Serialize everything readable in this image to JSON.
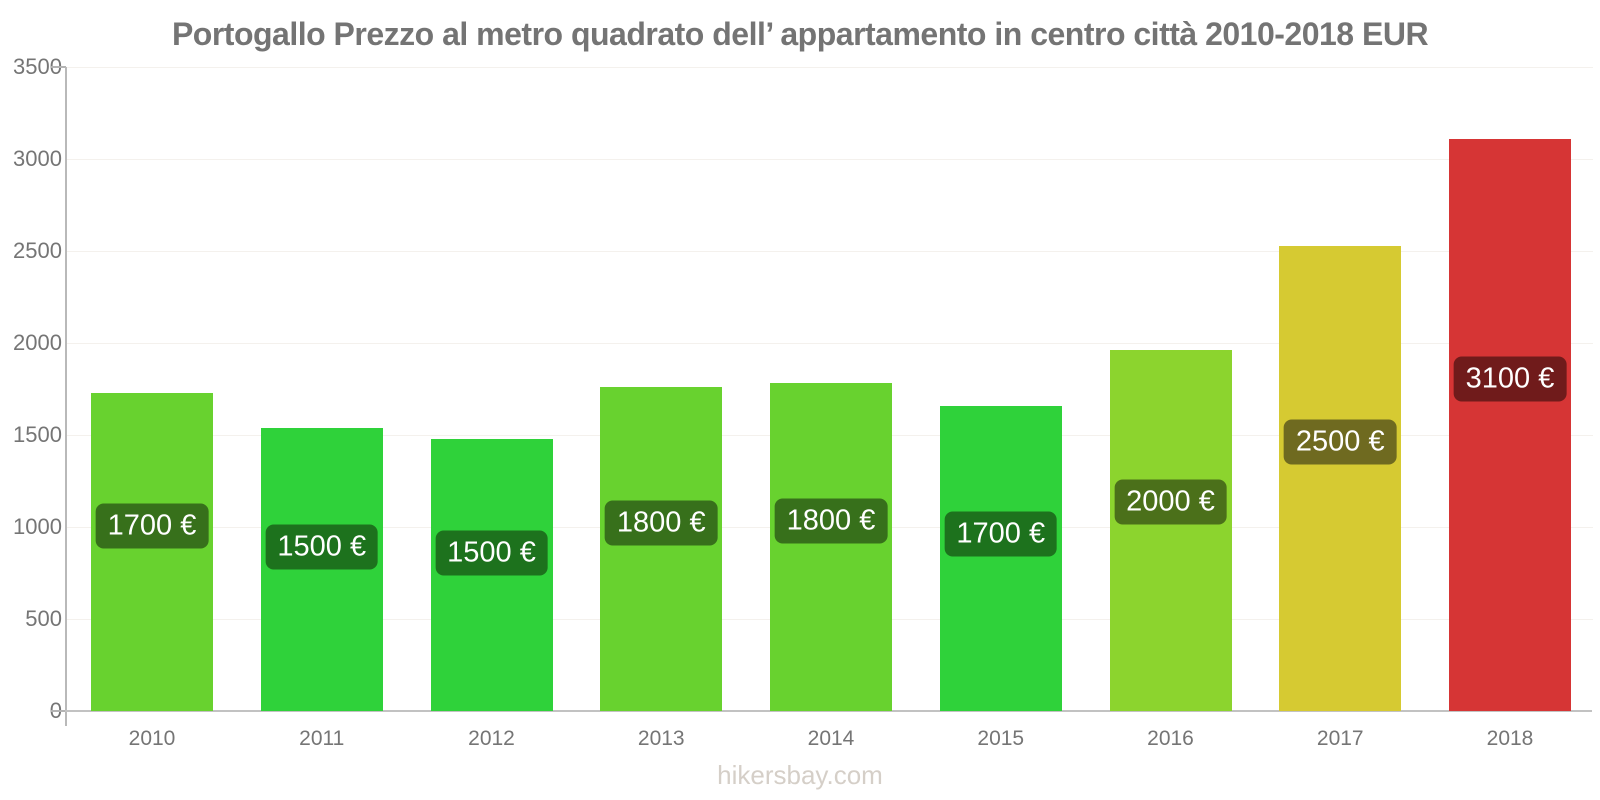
{
  "chart_data": {
    "type": "bar",
    "title": "Portogallo Prezzo al metro quadrato dell’ appartamento in centro città 2010-2018 EUR",
    "categories": [
      "2010",
      "2011",
      "2012",
      "2013",
      "2014",
      "2015",
      "2016",
      "2017",
      "2018"
    ],
    "values": [
      1700,
      1500,
      1500,
      1800,
      1800,
      1700,
      2000,
      2500,
      3100
    ],
    "bar_value_labels": [
      "1700 €",
      "1500 €",
      "1500 €",
      "1800 €",
      "1800 €",
      "1700 €",
      "2000 €",
      "2500 €",
      "3100 €"
    ],
    "render_heights_eur": [
      1730,
      1540,
      1480,
      1760,
      1785,
      1655,
      1960,
      2525,
      3110
    ],
    "bar_colors": [
      "#68d22f",
      "#2fd23a",
      "#2fd23a",
      "#68d22f",
      "#68d22f",
      "#2fd23a",
      "#8cd42e",
      "#d6ca32",
      "#d63535"
    ],
    "label_bg_colors": [
      "#37701b",
      "#1d721d",
      "#1d721d",
      "#37701b",
      "#37701b",
      "#1d721d",
      "#4b701a",
      "#6f6a20",
      "#701b1b"
    ],
    "xlabel": "",
    "ylabel": "",
    "ylim": [
      0,
      3500
    ],
    "yticks": [
      0,
      500,
      1000,
      1500,
      2000,
      2500,
      3000,
      3500
    ],
    "legend": "none",
    "grid": "faint horizontal gridlines at 500-EUR intervals"
  },
  "footer": "hikersbay.com",
  "style_colors": {
    "axis_line": "#b9b9b9",
    "tick_label": "#757575",
    "gridline": "#f4f1ed",
    "title_text": "#747474",
    "footer_text": "#d5cfc8",
    "value_label_text": "#ffffff",
    "background": "#ffffff"
  }
}
